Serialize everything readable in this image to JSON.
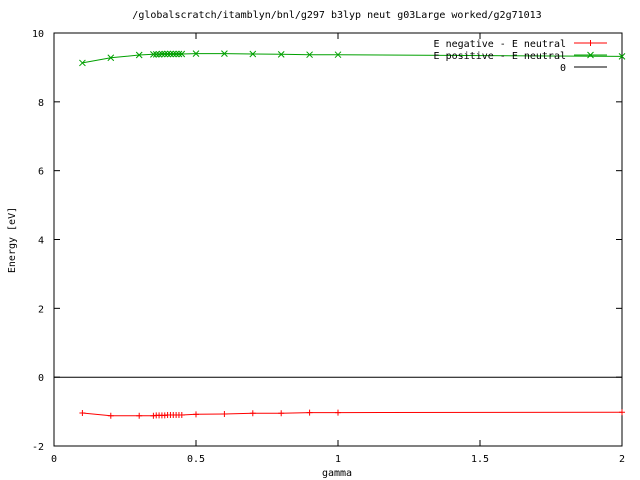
{
  "chart_data": {
    "type": "line",
    "title": "/globalscratch/itamblyn/bnl/g297 b3lyp neut g03Large worked/g2g71013",
    "xlabel": "gamma",
    "ylabel": "Energy [eV]",
    "xlim": [
      0,
      2
    ],
    "ylim": [
      -2,
      10
    ],
    "x_ticks": [
      "0",
      "0.5",
      "1",
      "1.5",
      "2"
    ],
    "y_ticks": [
      "-2",
      "0",
      "2",
      "4",
      "6",
      "8",
      "10"
    ],
    "x_tick_values": [
      0,
      0.5,
      1,
      1.5,
      2
    ],
    "y_tick_values": [
      -2,
      0,
      2,
      4,
      6,
      8,
      10
    ],
    "grid": false,
    "legend_position": "top-right",
    "series": [
      {
        "name": "E negative - E neutral",
        "color": "#ff0000",
        "marker": "plus",
        "x": [
          0.1,
          0.2,
          0.3,
          0.35,
          0.36,
          0.37,
          0.38,
          0.39,
          0.4,
          0.41,
          0.42,
          0.43,
          0.44,
          0.45,
          0.5,
          0.6,
          0.7,
          0.8,
          0.9,
          1.0,
          2.0
        ],
        "y": [
          -1.04,
          -1.12,
          -1.12,
          -1.12,
          -1.11,
          -1.11,
          -1.11,
          -1.11,
          -1.1,
          -1.1,
          -1.1,
          -1.1,
          -1.1,
          -1.1,
          -1.08,
          -1.07,
          -1.05,
          -1.05,
          -1.03,
          -1.03,
          -1.02
        ]
      },
      {
        "name": "E positive - E neutral",
        "color": "#00a000",
        "marker": "x",
        "x": [
          0.1,
          0.2,
          0.3,
          0.35,
          0.36,
          0.37,
          0.38,
          0.39,
          0.4,
          0.41,
          0.42,
          0.43,
          0.44,
          0.45,
          0.5,
          0.6,
          0.7,
          0.8,
          0.9,
          1.0,
          2.0
        ],
        "y": [
          9.13,
          9.28,
          9.36,
          9.38,
          9.38,
          9.38,
          9.39,
          9.39,
          9.39,
          9.39,
          9.39,
          9.39,
          9.39,
          9.39,
          9.4,
          9.4,
          9.39,
          9.38,
          9.37,
          9.37,
          9.32
        ]
      },
      {
        "name": "0",
        "color": "#000000",
        "marker": "none",
        "x": [
          0,
          2
        ],
        "y": [
          0,
          0
        ]
      }
    ]
  }
}
